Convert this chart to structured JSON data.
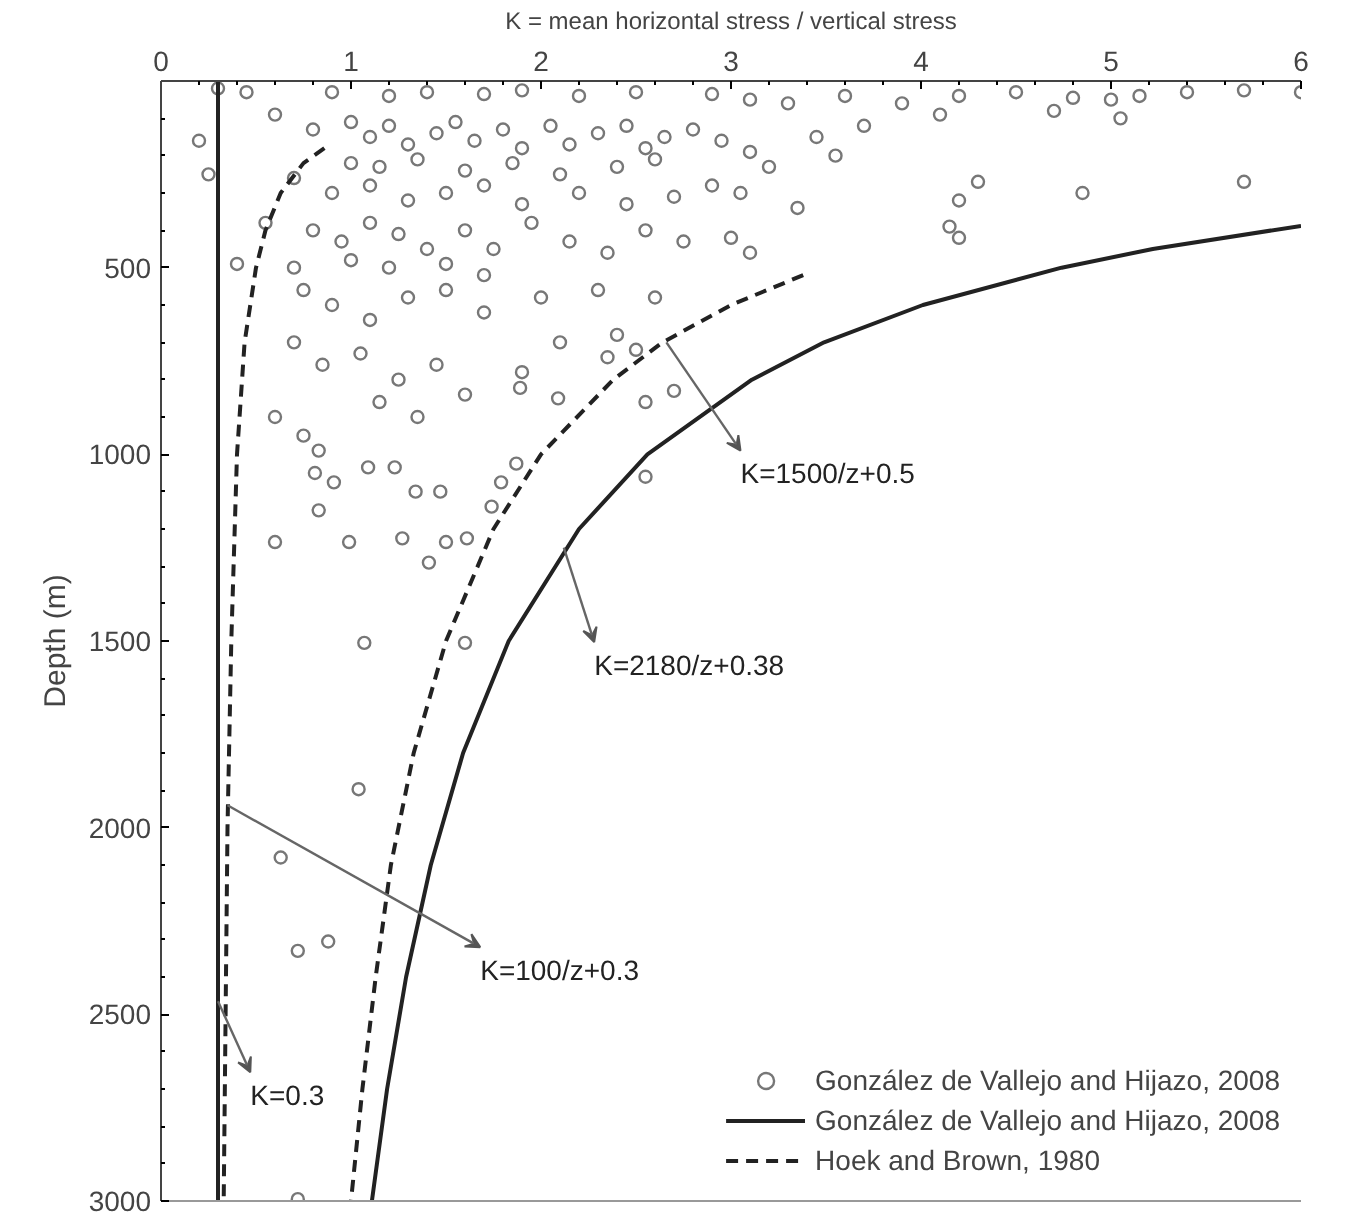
{
  "chart_data": {
    "type": "line",
    "xlabel": "K = mean horizontal stress / vertical stress",
    "ylabel": "Depth (m)",
    "xlim": [
      0,
      6
    ],
    "xticks": [
      0,
      1,
      2,
      3,
      4,
      5,
      6
    ],
    "ylim": [
      3000,
      0
    ],
    "yticks": [
      500,
      1000,
      1500,
      2000,
      2500,
      3000
    ],
    "grid": false,
    "legend": "bottom right",
    "series": [
      {
        "name": "González de Vallejo and Hijazo, 2008",
        "type": "scatter",
        "marker": "circle",
        "color": "#777777",
        "x": [
          0.3,
          0.45,
          0.9,
          1.2,
          1.4,
          1.7,
          1.9,
          2.2,
          2.5,
          2.9,
          3.1,
          3.3,
          3.6,
          3.9,
          4.2,
          4.5,
          4.8,
          5.0,
          5.15,
          5.4,
          5.7,
          6.0,
          4.7,
          5.05,
          4.1,
          0.2,
          0.25,
          0.6,
          0.8,
          1.0,
          1.1,
          1.2,
          1.3,
          1.45,
          1.55,
          1.65,
          1.8,
          1.9,
          2.05,
          2.15,
          2.3,
          2.45,
          2.55,
          2.65,
          2.8,
          2.95,
          3.1,
          3.2,
          3.45,
          3.55,
          3.7,
          1.0,
          1.15,
          1.35,
          1.6,
          1.85,
          2.1,
          2.4,
          2.6,
          0.7,
          0.9,
          1.1,
          1.3,
          1.5,
          1.7,
          1.9,
          2.2,
          2.45,
          2.7,
          2.9,
          3.05,
          3.35,
          0.55,
          0.8,
          0.95,
          1.1,
          1.25,
          1.4,
          1.6,
          1.75,
          1.95,
          2.15,
          2.35,
          2.55,
          2.75,
          3.0,
          3.1,
          0.4,
          0.7,
          1.0,
          1.2,
          1.5,
          1.7,
          4.2,
          4.3,
          4.15,
          4.2,
          4.85,
          5.7,
          0.75,
          0.9,
          1.1,
          1.3,
          1.5,
          1.7,
          2.0,
          2.3,
          2.6,
          0.7,
          0.85,
          1.05,
          1.25,
          1.45,
          1.6,
          1.9,
          2.1,
          2.4,
          2.55,
          2.7,
          0.6,
          0.75,
          1.15,
          1.35,
          2.35,
          2.5,
          2.55,
          0.83,
          0.81,
          0.91,
          1.09,
          1.23,
          1.34,
          1.47,
          0.83,
          0.6,
          0.99,
          1.27,
          1.5,
          1.61,
          1.41,
          1.74,
          1.79,
          1.87,
          1.07,
          1.6,
          1.04,
          2.09,
          1.89,
          0.63,
          0.72,
          0.88,
          0.72
        ],
        "values": [
          20,
          30,
          30,
          40,
          30,
          35,
          25,
          40,
          30,
          35,
          50,
          60,
          40,
          60,
          40,
          30,
          45,
          50,
          40,
          30,
          25,
          30,
          80,
          100,
          90,
          160,
          250,
          90,
          130,
          110,
          150,
          120,
          170,
          140,
          110,
          160,
          130,
          180,
          120,
          170,
          140,
          120,
          180,
          150,
          130,
          160,
          190,
          230,
          150,
          200,
          120,
          220,
          230,
          210,
          240,
          220,
          250,
          230,
          210,
          260,
          300,
          280,
          320,
          300,
          280,
          330,
          300,
          330,
          310,
          280,
          300,
          340,
          380,
          400,
          430,
          380,
          410,
          450,
          400,
          450,
          380,
          430,
          460,
          400,
          430,
          420,
          460,
          490,
          500,
          480,
          500,
          490,
          520,
          320,
          270,
          390,
          420,
          300,
          270,
          560,
          600,
          640,
          580,
          560,
          620,
          580,
          560,
          580,
          700,
          760,
          730,
          800,
          760,
          840,
          780,
          700,
          680,
          860,
          830,
          900,
          950,
          860,
          900,
          740,
          720,
          1060,
          990,
          1050,
          1075,
          1035,
          1035,
          1100,
          1100,
          1150,
          1235,
          1235,
          1225,
          1235,
          1225,
          1290,
          1140,
          1075,
          1025,
          1505,
          1505,
          1897,
          850,
          822,
          2080,
          2330,
          2305,
          2995
        ]
      },
      {
        "name": "González de Vallejo and Hijazo, 2008",
        "line_style": "solid",
        "color": "#222222",
        "x": [
          0.3,
          0.3,
          null,
          6.0,
          5.22,
          4.74,
          4.01,
          3.49,
          3.11,
          2.56,
          2.2,
          1.83,
          1.59,
          1.42,
          1.29,
          1.19,
          1.11
        ],
        "values": [
          0,
          3000,
          null,
          388,
          450,
          500,
          600,
          700,
          800,
          1000,
          1200,
          1500,
          1800,
          2100,
          2400,
          2700,
          3000
        ]
      },
      {
        "name": "Hoek and Brown, 1980",
        "line_style": "dashed",
        "color": "#222222",
        "x": [
          3.38,
          3.0,
          2.64,
          2.38,
          2.0,
          1.75,
          1.5,
          1.33,
          1.21,
          1.13,
          1.06,
          1.0,
          null,
          0.86,
          0.75,
          0.63,
          0.55,
          0.5,
          0.44,
          0.4,
          0.37,
          0.35,
          0.34,
          0.33
        ],
        "values": [
          520,
          600,
          700,
          800,
          1000,
          1200,
          1500,
          1800,
          2100,
          2400,
          2700,
          3000,
          null,
          180,
          220,
          300,
          400,
          500,
          700,
          1000,
          1500,
          2000,
          2500,
          3000
        ]
      }
    ],
    "annotations": [
      {
        "text": "K=1500/z+0.5",
        "x": 2.66,
        "y": 700
      },
      {
        "text": "K=2180/z+0.38",
        "x": 2.12,
        "y": 1250
      },
      {
        "text": "K=100/z+0.3",
        "x": 0.35,
        "y": 1940
      },
      {
        "text": "K=0.3",
        "x": 0.3,
        "y": 2465
      }
    ]
  }
}
